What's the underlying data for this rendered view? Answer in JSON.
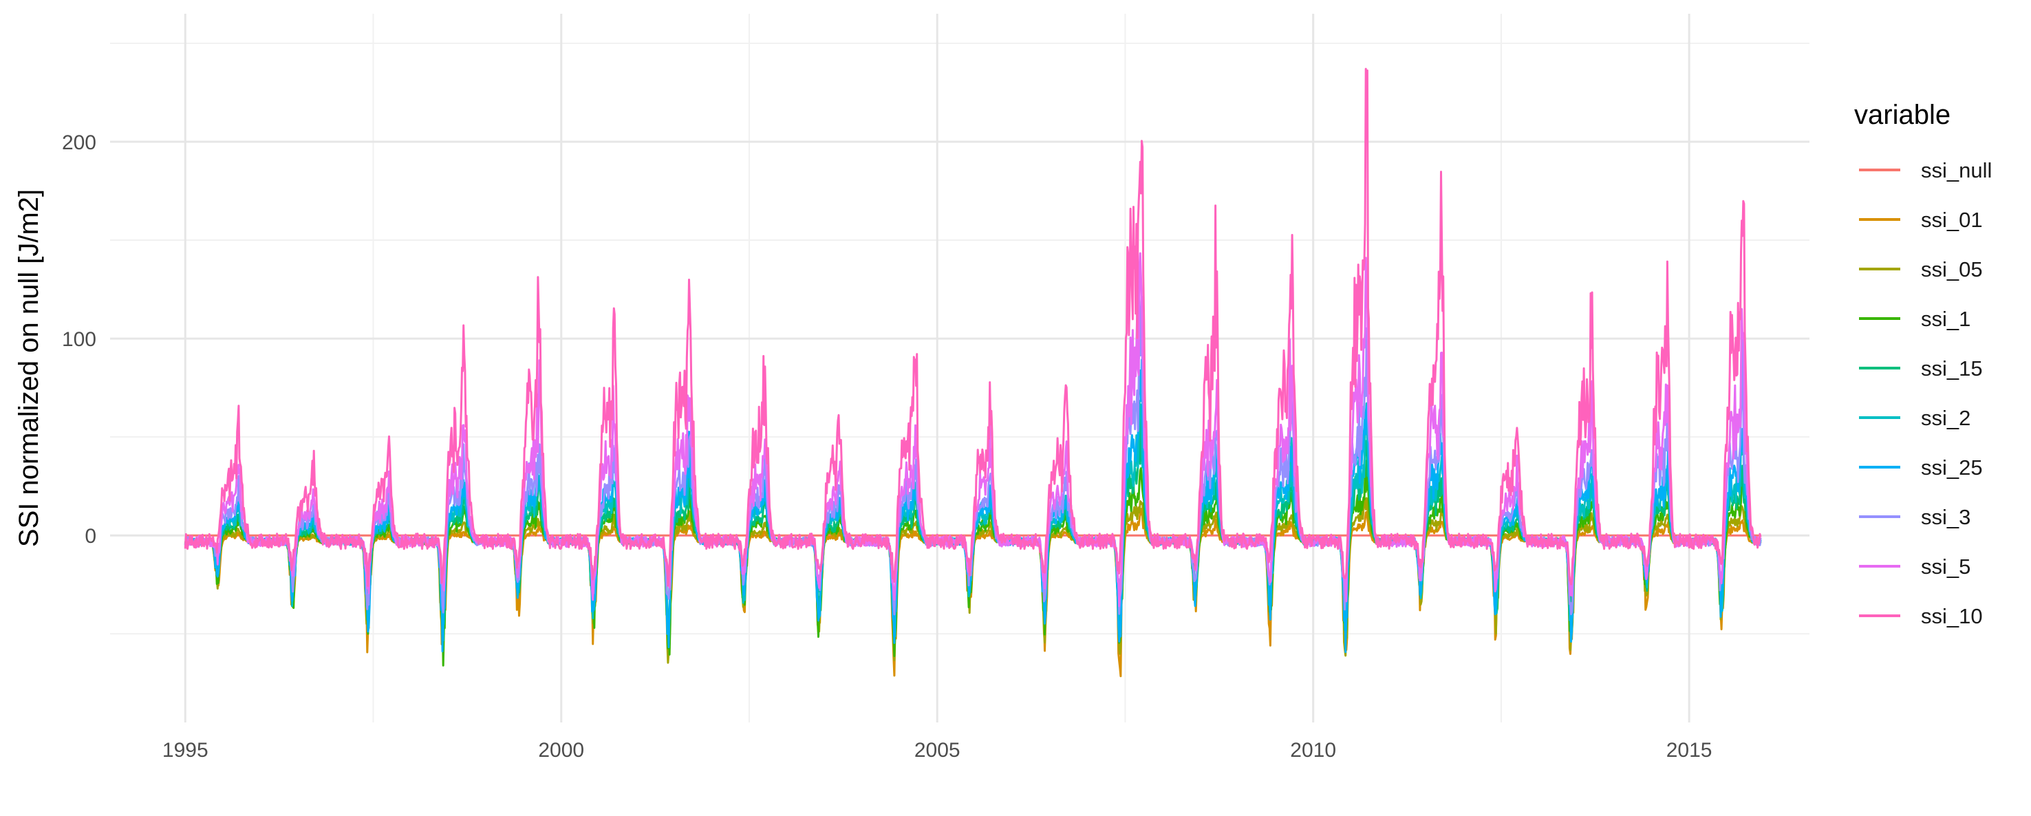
{
  "chart_data": {
    "type": "line",
    "title": "",
    "xlabel": "",
    "ylabel": "SSI normalized on null [J/m2]",
    "xlim": [
      1994.0,
      2016.6
    ],
    "ylim": [
      -95,
      265
    ],
    "x_ticks": [
      "1995",
      "2000",
      "2005",
      "2010",
      "2015"
    ],
    "y_ticks": [
      "0",
      "100",
      "200"
    ],
    "grid": true,
    "legend": {
      "title": "variable",
      "position": "right"
    },
    "series": [
      {
        "name": "ssi_null",
        "color": "#F8766D",
        "scale": 0.0,
        "neg": 0.0,
        "spike": 0.0
      },
      {
        "name": "ssi_01",
        "color": "#D89000",
        "scale": 0.06,
        "neg": 1.0,
        "spike": 0.7
      },
      {
        "name": "ssi_05",
        "color": "#A3A500",
        "scale": 0.1,
        "neg": 0.9,
        "spike": 0.55
      },
      {
        "name": "ssi_1",
        "color": "#39B600",
        "scale": 0.16,
        "neg": 0.85,
        "spike": 0.5
      },
      {
        "name": "ssi_15",
        "color": "#00BF7D",
        "scale": 0.22,
        "neg": 0.7,
        "spike": 0.4
      },
      {
        "name": "ssi_2",
        "color": "#00BFC4",
        "scale": 0.28,
        "neg": 0.75,
        "spike": 0.4
      },
      {
        "name": "ssi_25",
        "color": "#00B0F6",
        "scale": 0.34,
        "neg": 0.8,
        "spike": 0.4
      },
      {
        "name": "ssi_3",
        "color": "#9590FF",
        "scale": 0.45,
        "neg": 0.6,
        "spike": 0.35
      },
      {
        "name": "ssi_5",
        "color": "#E76BF3",
        "scale": 0.62,
        "neg": 0.5,
        "spike": 0.3
      },
      {
        "name": "ssi_10",
        "color": "#FF62BC",
        "scale": 1.0,
        "neg": 0.35,
        "spike": 0.25
      }
    ],
    "seasons": [
      {
        "year": 1995,
        "peak": 60
      },
      {
        "year": 1996,
        "peak": 40
      },
      {
        "year": 1997,
        "peak": 50
      },
      {
        "year": 1998,
        "peak": 95
      },
      {
        "year": 1999,
        "peak": 122
      },
      {
        "year": 2000,
        "peak": 115
      },
      {
        "year": 2001,
        "peak": 130
      },
      {
        "year": 2002,
        "peak": 90
      },
      {
        "year": 2003,
        "peak": 70
      },
      {
        "year": 2004,
        "peak": 95
      },
      {
        "year": 2005,
        "peak": 80
      },
      {
        "year": 2006,
        "peak": 72
      },
      {
        "year": 2007,
        "peak": 250
      },
      {
        "year": 2008,
        "peak": 145
      },
      {
        "year": 2009,
        "peak": 145
      },
      {
        "year": 2010,
        "peak": 215
      },
      {
        "year": 2011,
        "peak": 168
      },
      {
        "year": 2012,
        "peak": 60
      },
      {
        "year": 2013,
        "peak": 122
      },
      {
        "year": 2014,
        "peak": 145
      },
      {
        "year": 2015,
        "peak": 175
      }
    ]
  }
}
